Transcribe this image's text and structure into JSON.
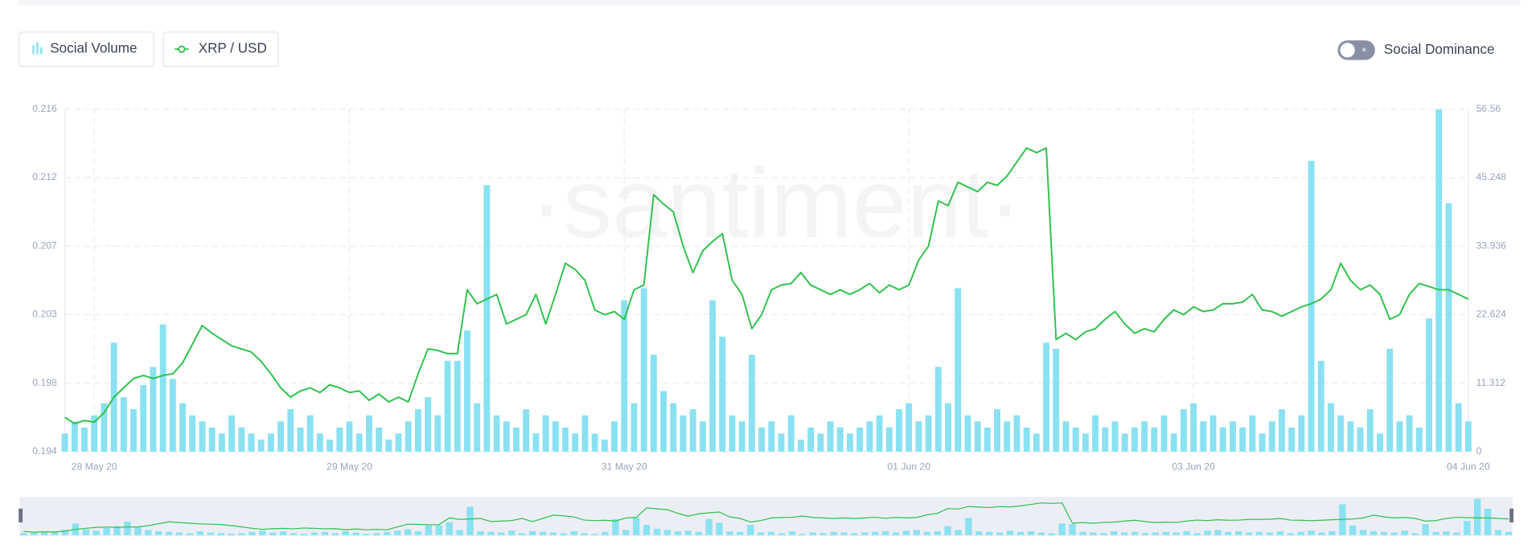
{
  "chart_data": {
    "type": "line",
    "watermark": "·santiment·",
    "toggle_label": "Social Dominance",
    "categories": [
      null,
      null,
      null,
      "28 May 20",
      null,
      null,
      null,
      null,
      null,
      null,
      null,
      null,
      null,
      null,
      null,
      null,
      null,
      null,
      null,
      null,
      null,
      null,
      null,
      null,
      null,
      null,
      null,
      null,
      null,
      "29 May 20",
      null,
      null,
      null,
      null,
      null,
      null,
      null,
      null,
      null,
      null,
      null,
      null,
      null,
      null,
      null,
      null,
      null,
      null,
      null,
      null,
      null,
      null,
      null,
      null,
      null,
      null,
      null,
      "31 May 20",
      null,
      null,
      null,
      null,
      null,
      null,
      null,
      null,
      null,
      null,
      null,
      null,
      null,
      null,
      null,
      null,
      null,
      null,
      null,
      null,
      null,
      null,
      null,
      null,
      null,
      null,
      null,
      null,
      "01 Jun 20",
      null,
      null,
      null,
      null,
      null,
      null,
      null,
      null,
      null,
      null,
      null,
      null,
      null,
      null,
      null,
      null,
      null,
      null,
      null,
      null,
      null,
      null,
      null,
      null,
      null,
      null,
      null,
      null,
      "03 Jun 20",
      null,
      null,
      null,
      null,
      null,
      null,
      null,
      null,
      null,
      null,
      null,
      null,
      null,
      null,
      null,
      null,
      null,
      null,
      null,
      null,
      null,
      null,
      null,
      null,
      null,
      null,
      null,
      "04 Jun 20"
    ],
    "series": [
      {
        "name": "Social Volume",
        "type": "bar",
        "axis": "y2",
        "color": "#89e1f2",
        "values": [
          3,
          5,
          4,
          6,
          8,
          18,
          9,
          7,
          11,
          14,
          21,
          12,
          8,
          6,
          5,
          4,
          3,
          6,
          4,
          3,
          2,
          3,
          5,
          7,
          4,
          6,
          3,
          2,
          4,
          5,
          3,
          6,
          4,
          2,
          3,
          5,
          7,
          9,
          6,
          15,
          15,
          20,
          8,
          44,
          6,
          5,
          4,
          7,
          3,
          6,
          5,
          4,
          3,
          6,
          3,
          2,
          5,
          25,
          8,
          27,
          16,
          10,
          8,
          6,
          7,
          5,
          25,
          19,
          6,
          5,
          16,
          4,
          5,
          3,
          6,
          2,
          4,
          3,
          5,
          4,
          3,
          4,
          5,
          6,
          4,
          7,
          8,
          5,
          6,
          14,
          8,
          27,
          6,
          5,
          4,
          7,
          5,
          6,
          4,
          3,
          18,
          17,
          5,
          4,
          3,
          6,
          4,
          5,
          3,
          4,
          5,
          4,
          6,
          3,
          7,
          8,
          5,
          6,
          4,
          5,
          4,
          6,
          3,
          5,
          7,
          4,
          6,
          48,
          15,
          8,
          6,
          5,
          4,
          7,
          3,
          17,
          5,
          6,
          4,
          22,
          56.5,
          41,
          8,
          5
        ]
      },
      {
        "name": "XRP / USD",
        "type": "line",
        "color": "#2dc24c",
        "values": [
          0.1962,
          0.1958,
          0.196,
          0.1959,
          0.1965,
          0.1975,
          0.1981,
          0.1987,
          0.1989,
          0.1987,
          0.1989,
          0.199,
          0.1997,
          0.2009,
          0.2021,
          0.2016,
          0.2012,
          0.2008,
          0.2006,
          0.2004,
          0.1998,
          0.199,
          0.1981,
          0.1975,
          0.1979,
          0.1981,
          0.1978,
          0.1983,
          0.1981,
          0.1978,
          0.1979,
          0.1973,
          0.1977,
          0.1972,
          0.1975,
          0.1972,
          0.199,
          0.2006,
          0.2005,
          0.2003,
          0.2003,
          0.2044,
          0.2035,
          0.2038,
          0.2041,
          0.2022,
          0.2025,
          0.2028,
          0.2041,
          0.2022,
          0.2041,
          0.2061,
          0.2057,
          0.205,
          0.2031,
          0.2028,
          0.203,
          0.2025,
          0.2044,
          0.2047,
          0.2105,
          0.2099,
          0.2094,
          0.2072,
          0.2055,
          0.2069,
          0.2075,
          0.208,
          0.205,
          0.2041,
          0.2019,
          0.2028,
          0.2044,
          0.2047,
          0.2048,
          0.2055,
          0.2047,
          0.2044,
          0.2041,
          0.2044,
          0.2041,
          0.2044,
          0.2048,
          0.2042,
          0.2047,
          0.2044,
          0.2047,
          0.2063,
          0.2072,
          0.2101,
          0.2098,
          0.2113,
          0.211,
          0.2107,
          0.2113,
          0.2111,
          0.2117,
          0.2126,
          0.2135,
          0.2132,
          0.2135,
          0.2012,
          0.2016,
          0.2012,
          0.2017,
          0.2019,
          0.2025,
          0.203,
          0.2022,
          0.2016,
          0.2019,
          0.2017,
          0.2025,
          0.2031,
          0.2028,
          0.2033,
          0.203,
          0.2031,
          0.2035,
          0.2035,
          0.2036,
          0.2041,
          0.2031,
          0.203,
          0.2027,
          0.203,
          0.2033,
          0.2035,
          0.2038,
          0.2044,
          0.2061,
          0.205,
          0.2044,
          0.2047,
          0.2041,
          0.2025,
          0.2028,
          0.2041,
          0.2048,
          0.2046,
          0.2044,
          0.2044,
          0.2041,
          0.2038
        ]
      }
    ],
    "ylim": [
      0.194,
      0.216
    ],
    "yticks": [
      {
        "value": 0.194,
        "label": "0.194"
      },
      {
        "value": 0.1984,
        "label": "0.198"
      },
      {
        "value": 0.2028,
        "label": "0.203"
      },
      {
        "value": 0.2072,
        "label": "0.207"
      },
      {
        "value": 0.2116,
        "label": "0.212"
      },
      {
        "value": 0.216,
        "label": "0.216"
      }
    ],
    "y2lim": [
      0,
      56.56
    ],
    "y2ticks": [
      0,
      11.312,
      22.624,
      33.936,
      45.248,
      56.56
    ],
    "grid": true
  }
}
